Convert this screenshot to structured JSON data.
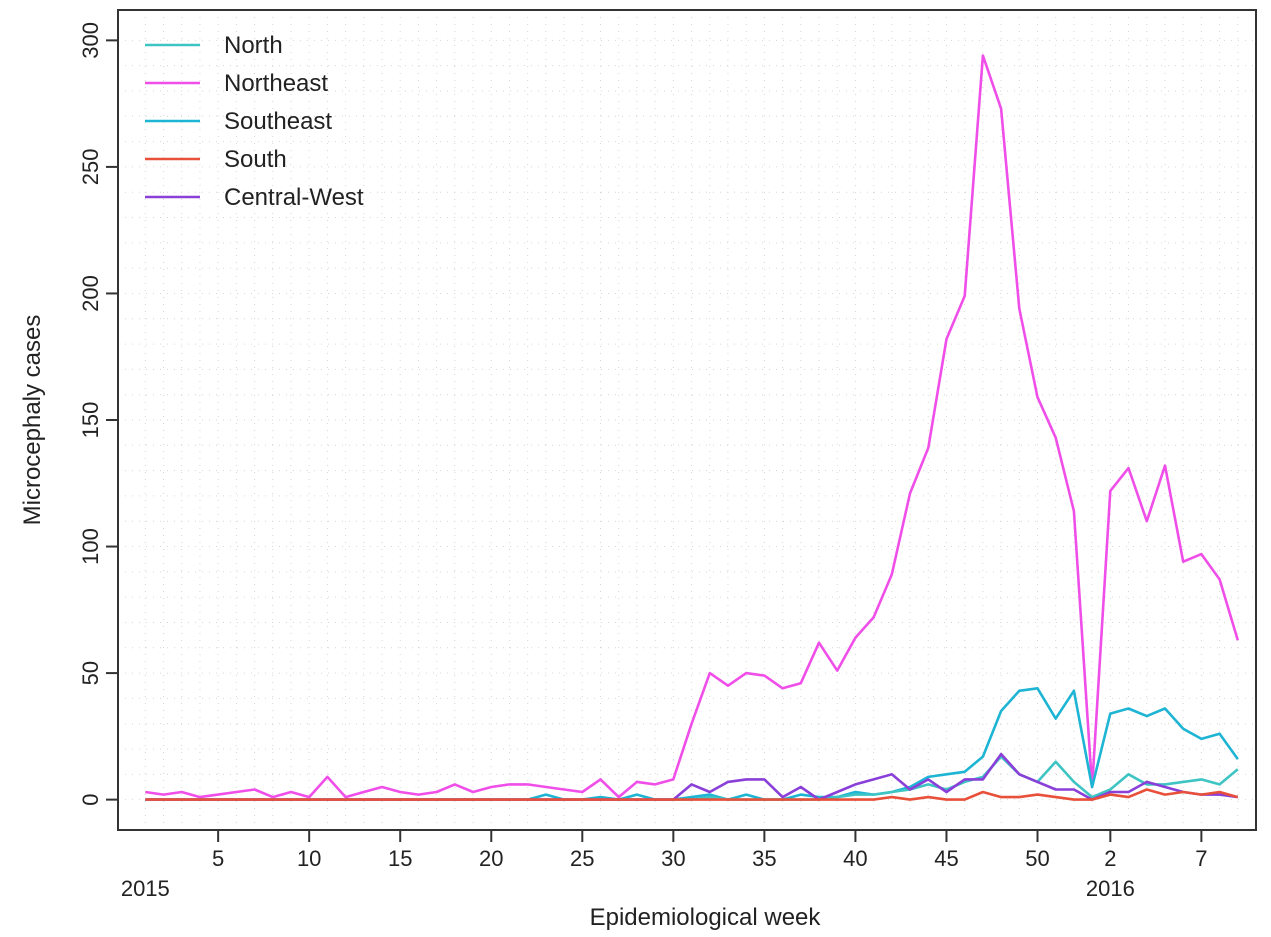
{
  "chart_data": {
    "type": "line",
    "xlabel": "Epidemiological week",
    "ylabel": "Microcephaly cases",
    "ylim": [
      0,
      300
    ],
    "yticks": [
      0,
      50,
      100,
      150,
      200,
      250,
      300
    ],
    "grid": true,
    "legend_position": "top-left",
    "x_tick_labels": [
      {
        "week": 5,
        "label": "5"
      },
      {
        "week": 10,
        "label": "10"
      },
      {
        "week": 15,
        "label": "15"
      },
      {
        "week": 20,
        "label": "20"
      },
      {
        "week": 25,
        "label": "25"
      },
      {
        "week": 30,
        "label": "30"
      },
      {
        "week": 35,
        "label": "35"
      },
      {
        "week": 40,
        "label": "40"
      },
      {
        "week": 45,
        "label": "45"
      },
      {
        "week": 50,
        "label": "50"
      },
      {
        "week": 54,
        "label": "2"
      },
      {
        "week": 59,
        "label": "7"
      }
    ],
    "year_labels": [
      {
        "week": 1,
        "label": "2015"
      },
      {
        "week": 54,
        "label": "2016"
      }
    ],
    "x": [
      1,
      2,
      3,
      4,
      5,
      6,
      7,
      8,
      9,
      10,
      11,
      12,
      13,
      14,
      15,
      16,
      17,
      18,
      19,
      20,
      21,
      22,
      23,
      24,
      25,
      26,
      27,
      28,
      29,
      30,
      31,
      32,
      33,
      34,
      35,
      36,
      37,
      38,
      39,
      40,
      41,
      42,
      43,
      44,
      45,
      46,
      47,
      48,
      49,
      50,
      51,
      52,
      53,
      54,
      55,
      56,
      57,
      58,
      59,
      60,
      61
    ],
    "series": [
      {
        "name": "North",
        "color": "#3fc4c4",
        "values": [
          0,
          0,
          0,
          0,
          0,
          0,
          0,
          0,
          0,
          0,
          0,
          0,
          0,
          0,
          0,
          0,
          0,
          0,
          0,
          0,
          0,
          0,
          0,
          0,
          0,
          0,
          0,
          0,
          0,
          0,
          0,
          1,
          0,
          0,
          0,
          0,
          0,
          0,
          1,
          2,
          2,
          3,
          4,
          6,
          4,
          7,
          9,
          17,
          10,
          7,
          15,
          7,
          1,
          4,
          10,
          6,
          6,
          7,
          8,
          6,
          12
        ]
      },
      {
        "name": "Northeast",
        "color": "#ef4fe8",
        "values": [
          3,
          2,
          3,
          1,
          2,
          3,
          4,
          1,
          3,
          1,
          9,
          1,
          3,
          5,
          3,
          2,
          3,
          6,
          3,
          5,
          6,
          6,
          5,
          4,
          3,
          8,
          1,
          7,
          6,
          8,
          30,
          50,
          45,
          50,
          49,
          44,
          46,
          62,
          51,
          64,
          72,
          89,
          121,
          139,
          182,
          199,
          294,
          273,
          194,
          159,
          143,
          114,
          5,
          122,
          131,
          110,
          132,
          94,
          97,
          87,
          63
        ]
      },
      {
        "name": "Southeast",
        "color": "#1eb4d4",
        "values": [
          0,
          0,
          0,
          0,
          0,
          0,
          0,
          0,
          0,
          0,
          0,
          0,
          0,
          0,
          0,
          0,
          0,
          0,
          0,
          0,
          0,
          0,
          2,
          0,
          0,
          1,
          0,
          2,
          0,
          0,
          1,
          2,
          0,
          2,
          0,
          0,
          2,
          1,
          1,
          3,
          2,
          3,
          5,
          9,
          10,
          11,
          17,
          35,
          43,
          44,
          32,
          43,
          5,
          34,
          36,
          33,
          36,
          28,
          24,
          26,
          16
        ]
      },
      {
        "name": "South",
        "color": "#e8503a",
        "values": [
          0,
          0,
          0,
          0,
          0,
          0,
          0,
          0,
          0,
          0,
          0,
          0,
          0,
          0,
          0,
          0,
          0,
          0,
          0,
          0,
          0,
          0,
          0,
          0,
          0,
          0,
          0,
          0,
          0,
          0,
          0,
          0,
          0,
          0,
          0,
          0,
          0,
          0,
          0,
          0,
          0,
          1,
          0,
          1,
          0,
          0,
          3,
          1,
          1,
          2,
          1,
          0,
          0,
          2,
          1,
          4,
          2,
          3,
          2,
          3,
          1
        ]
      },
      {
        "name": "Central-West",
        "color": "#8a3fd8",
        "values": [
          0,
          0,
          0,
          0,
          0,
          0,
          0,
          0,
          0,
          0,
          0,
          0,
          0,
          0,
          0,
          0,
          0,
          0,
          0,
          0,
          0,
          0,
          0,
          0,
          0,
          0,
          0,
          0,
          0,
          0,
          6,
          3,
          7,
          8,
          8,
          1,
          5,
          0,
          3,
          6,
          8,
          10,
          4,
          8,
          3,
          8,
          8,
          18,
          10,
          7,
          4,
          4,
          0,
          3,
          3,
          7,
          5,
          3,
          2,
          2,
          1
        ]
      }
    ]
  }
}
